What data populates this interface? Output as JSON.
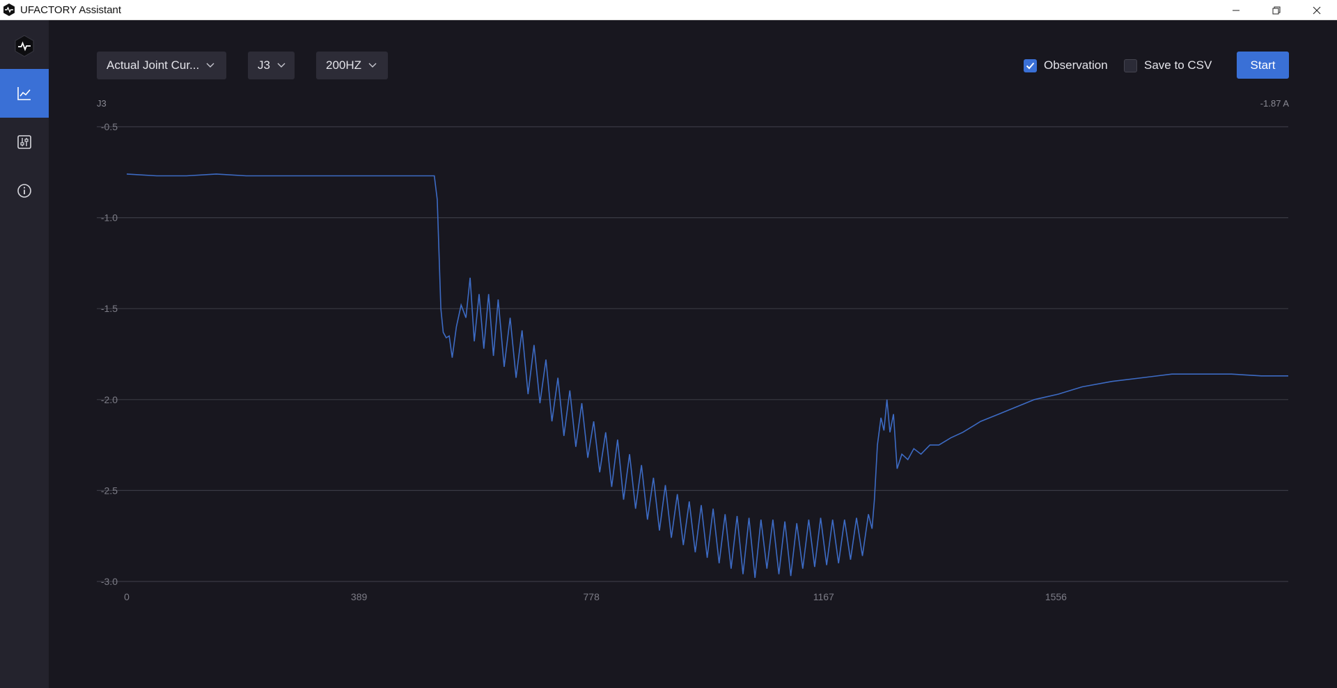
{
  "window": {
    "title": "UFACTORY Assistant"
  },
  "sidebar": {
    "items": [
      {
        "icon": "line-chart-icon",
        "active": true
      },
      {
        "icon": "sliders-icon",
        "active": false
      },
      {
        "icon": "info-icon",
        "active": false
      }
    ]
  },
  "toolbar": {
    "data_type": "Actual Joint Cur...",
    "joint": "J3",
    "frequency": "200HZ",
    "observation_label": "Observation",
    "observation_checked": true,
    "save_csv_label": "Save to CSV",
    "save_csv_checked": false,
    "start_label": "Start"
  },
  "colors": {
    "accent": "#3a70d6",
    "line": "#3d6bc4",
    "background": "#18171f"
  },
  "chart_data": {
    "type": "line",
    "series_label": "J3",
    "current_value": "-1.87 A",
    "xlim": [
      0,
      1945
    ],
    "ylim": [
      -3.0,
      -0.5
    ],
    "x_ticks": [
      0,
      389,
      778,
      1167,
      1556
    ],
    "y_ticks": [
      -0.5,
      -1.0,
      -1.5,
      -2.0,
      -2.5,
      -3.0
    ],
    "y_tick_labels": [
      "-0.5",
      "-1.0",
      "-1.5",
      "-2.0",
      "-2.5",
      "-3.0"
    ],
    "grid": true,
    "series": [
      {
        "points": [
          [
            0,
            -0.76
          ],
          [
            50,
            -0.77
          ],
          [
            100,
            -0.77
          ],
          [
            150,
            -0.76
          ],
          [
            200,
            -0.77
          ],
          [
            250,
            -0.77
          ],
          [
            300,
            -0.77
          ],
          [
            350,
            -0.77
          ],
          [
            400,
            -0.77
          ],
          [
            450,
            -0.77
          ],
          [
            515,
            -0.77
          ],
          [
            520,
            -0.9
          ],
          [
            523,
            -1.2
          ],
          [
            526,
            -1.5
          ],
          [
            530,
            -1.63
          ],
          [
            535,
            -1.66
          ],
          [
            540,
            -1.65
          ],
          [
            545,
            -1.77
          ],
          [
            552,
            -1.6
          ],
          [
            560,
            -1.48
          ],
          [
            568,
            -1.55
          ],
          [
            575,
            -1.33
          ],
          [
            582,
            -1.68
          ],
          [
            590,
            -1.42
          ],
          [
            598,
            -1.72
          ],
          [
            606,
            -1.42
          ],
          [
            614,
            -1.76
          ],
          [
            622,
            -1.45
          ],
          [
            632,
            -1.82
          ],
          [
            642,
            -1.55
          ],
          [
            652,
            -1.88
          ],
          [
            662,
            -1.62
          ],
          [
            672,
            -1.97
          ],
          [
            682,
            -1.7
          ],
          [
            692,
            -2.02
          ],
          [
            702,
            -1.78
          ],
          [
            712,
            -2.12
          ],
          [
            722,
            -1.88
          ],
          [
            732,
            -2.2
          ],
          [
            742,
            -1.95
          ],
          [
            752,
            -2.26
          ],
          [
            762,
            -2.02
          ],
          [
            772,
            -2.32
          ],
          [
            782,
            -2.12
          ],
          [
            792,
            -2.4
          ],
          [
            802,
            -2.18
          ],
          [
            812,
            -2.48
          ],
          [
            822,
            -2.22
          ],
          [
            832,
            -2.55
          ],
          [
            842,
            -2.3
          ],
          [
            852,
            -2.6
          ],
          [
            862,
            -2.36
          ],
          [
            872,
            -2.66
          ],
          [
            882,
            -2.43
          ],
          [
            892,
            -2.72
          ],
          [
            902,
            -2.47
          ],
          [
            912,
            -2.76
          ],
          [
            922,
            -2.52
          ],
          [
            932,
            -2.8
          ],
          [
            942,
            -2.56
          ],
          [
            952,
            -2.84
          ],
          [
            962,
            -2.58
          ],
          [
            972,
            -2.87
          ],
          [
            982,
            -2.6
          ],
          [
            992,
            -2.9
          ],
          [
            1002,
            -2.63
          ],
          [
            1012,
            -2.93
          ],
          [
            1022,
            -2.64
          ],
          [
            1032,
            -2.96
          ],
          [
            1042,
            -2.65
          ],
          [
            1052,
            -2.98
          ],
          [
            1062,
            -2.66
          ],
          [
            1072,
            -2.93
          ],
          [
            1082,
            -2.66
          ],
          [
            1092,
            -2.96
          ],
          [
            1102,
            -2.67
          ],
          [
            1112,
            -2.97
          ],
          [
            1122,
            -2.68
          ],
          [
            1132,
            -2.93
          ],
          [
            1142,
            -2.66
          ],
          [
            1152,
            -2.92
          ],
          [
            1162,
            -2.65
          ],
          [
            1172,
            -2.91
          ],
          [
            1182,
            -2.66
          ],
          [
            1192,
            -2.9
          ],
          [
            1202,
            -2.66
          ],
          [
            1212,
            -2.88
          ],
          [
            1222,
            -2.65
          ],
          [
            1232,
            -2.86
          ],
          [
            1242,
            -2.63
          ],
          [
            1248,
            -2.71
          ],
          [
            1252,
            -2.55
          ],
          [
            1257,
            -2.25
          ],
          [
            1263,
            -2.1
          ],
          [
            1268,
            -2.17
          ],
          [
            1273,
            -2.0
          ],
          [
            1278,
            -2.18
          ],
          [
            1284,
            -2.08
          ],
          [
            1290,
            -2.38
          ],
          [
            1298,
            -2.3
          ],
          [
            1308,
            -2.33
          ],
          [
            1318,
            -2.27
          ],
          [
            1330,
            -2.3
          ],
          [
            1345,
            -2.25
          ],
          [
            1360,
            -2.25
          ],
          [
            1380,
            -2.21
          ],
          [
            1400,
            -2.18
          ],
          [
            1430,
            -2.12
          ],
          [
            1460,
            -2.08
          ],
          [
            1490,
            -2.04
          ],
          [
            1520,
            -2.0
          ],
          [
            1560,
            -1.97
          ],
          [
            1600,
            -1.93
          ],
          [
            1650,
            -1.9
          ],
          [
            1700,
            -1.88
          ],
          [
            1750,
            -1.86
          ],
          [
            1800,
            -1.86
          ],
          [
            1850,
            -1.86
          ],
          [
            1900,
            -1.87
          ],
          [
            1945,
            -1.87
          ]
        ]
      }
    ]
  }
}
